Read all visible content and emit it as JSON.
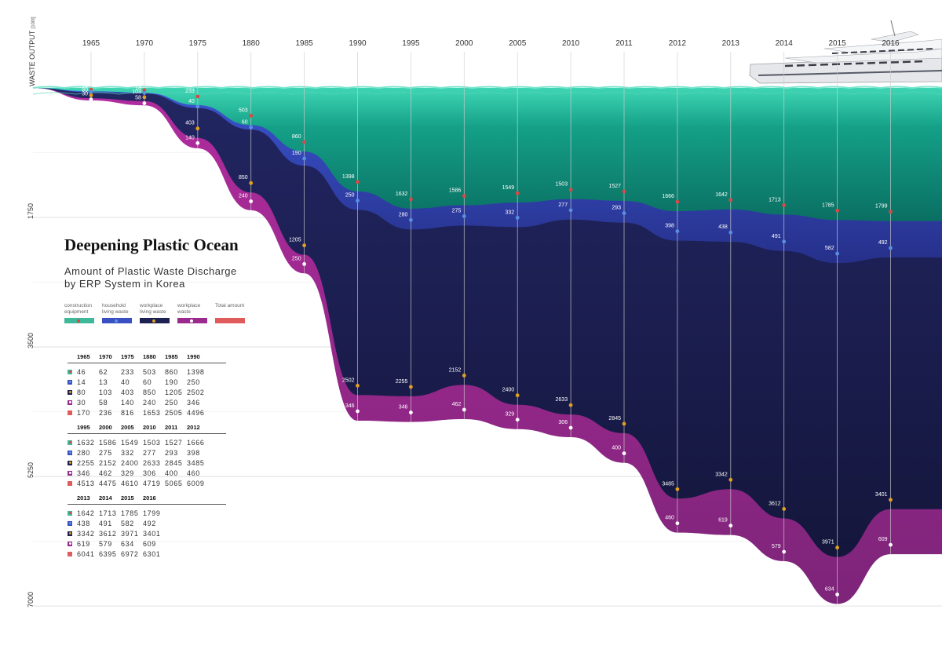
{
  "chart_data": {
    "type": "area",
    "title": "Deepening Plastic Ocean",
    "subtitle": "Amount of Plastic Waste Discharge\nby ERP System in Korea",
    "ylabel": "WASTE OUTPUT",
    "yunit": "[100t]",
    "yticks": [
      "1750",
      "3500",
      "5250",
      "7000"
    ],
    "ytick_values": [
      1750,
      3500,
      5250,
      7000
    ],
    "ylim": [
      0,
      7600
    ],
    "grid": true,
    "legend_placement": "left",
    "categories": [
      "1965",
      "1970",
      "1975",
      "1880",
      "1985",
      "1990",
      "1995",
      "2000",
      "2005",
      "2010",
      "2011",
      "2012",
      "2013",
      "2014",
      "2015",
      "2016"
    ],
    "series": [
      {
        "name": "construction equipment",
        "color": "#3fb89a",
        "values": [
          46,
          62,
          233,
          503,
          860,
          1398,
          1632,
          1586,
          1549,
          1503,
          1527,
          1666,
          1642,
          1713,
          1785,
          1799
        ]
      },
      {
        "name": "household living waste",
        "color": "#3a4fc0",
        "values": [
          14,
          13,
          40,
          60,
          190,
          250,
          280,
          275,
          332,
          277,
          293,
          398,
          438,
          491,
          582,
          492
        ]
      },
      {
        "name": "workplace living waste",
        "color": "#1d2152",
        "values": [
          80,
          103,
          403,
          850,
          1205,
          2502,
          2255,
          2152,
          2400,
          2633,
          2845,
          3485,
          3342,
          3612,
          3971,
          3401
        ]
      },
      {
        "name": "workplace waste",
        "color": "#9a2a8e",
        "values": [
          30,
          58,
          140,
          240,
          250,
          346,
          346,
          462,
          329,
          306,
          400,
          460,
          619,
          579,
          634,
          609
        ]
      },
      {
        "name": "Total amount",
        "color": "#e05c5c",
        "values": [
          170,
          236,
          816,
          1653,
          2505,
          4496,
          4513,
          4475,
          4610,
          4719,
          5065,
          6009,
          6041,
          6395,
          6972,
          6301
        ]
      }
    ]
  },
  "tables": [
    {
      "years": [
        "1965",
        "1970",
        "1975",
        "1880",
        "1985",
        "1990"
      ],
      "rows": [
        [
          "46",
          "62",
          "233",
          "503",
          "860",
          "1398"
        ],
        [
          "14",
          "13",
          "40",
          "60",
          "190",
          "250"
        ],
        [
          "80",
          "103",
          "403",
          "850",
          "1205",
          "2502"
        ],
        [
          "30",
          "58",
          "140",
          "240",
          "250",
          "346"
        ],
        [
          "170",
          "236",
          "816",
          "1653",
          "2505",
          "4496"
        ]
      ]
    },
    {
      "years": [
        "1995",
        "2000",
        "2005",
        "2010",
        "2011",
        "2012"
      ],
      "rows": [
        [
          "1632",
          "1586",
          "1549",
          "1503",
          "1527",
          "1666"
        ],
        [
          "280",
          "275",
          "332",
          "277",
          "293",
          "398"
        ],
        [
          "2255",
          "2152",
          "2400",
          "2633",
          "2845",
          "3485"
        ],
        [
          "346",
          "462",
          "329",
          "306",
          "400",
          "460"
        ],
        [
          "4513",
          "4475",
          "4610",
          "4719",
          "5065",
          "6009"
        ]
      ]
    },
    {
      "years": [
        "2013",
        "2014",
        "2015",
        "2016"
      ],
      "rows": [
        [
          "1642",
          "1713",
          "1785",
          "1799"
        ],
        [
          "438",
          "491",
          "582",
          "492"
        ],
        [
          "3342",
          "3612",
          "3971",
          "3401"
        ],
        [
          "619",
          "579",
          "634",
          "609"
        ],
        [
          "6041",
          "6395",
          "6972",
          "6301"
        ]
      ]
    }
  ],
  "colors": {
    "water_surface": "#2fc9a8",
    "water_deep": "#0d7d68",
    "ocean_dark": "#1a1d4a",
    "ship": "#e8e8ec"
  }
}
